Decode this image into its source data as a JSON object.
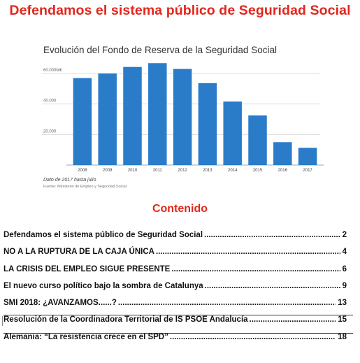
{
  "document": {
    "title": "Defendamos el sistema público de Seguridad Social",
    "section_heading": "Contenido"
  },
  "chart_data": {
    "type": "bar",
    "title": "Evolución del Fondo de Reserva de la Seguridad Social",
    "categories": [
      "2008",
      "2009",
      "2010",
      "2011",
      "2012",
      "2013",
      "2014",
      "2015",
      "2016",
      "2017"
    ],
    "values": [
      57000,
      60000,
      64300,
      66800,
      63000,
      53700,
      41600,
      32500,
      15000,
      11300
    ],
    "ylim": [
      0,
      66000
    ],
    "y_ticks": [
      20000,
      40000,
      60000
    ],
    "y_tick_labels": [
      "20.000",
      "40.000",
      "60.000M€"
    ],
    "grid": true,
    "bar_color": "#2a7cc9",
    "note": "Dato de 2017 hasta julio",
    "source": "Fuente: Ministerio de Empleo y Seguridad Social"
  },
  "toc": [
    {
      "text": "Defendamos el sistema público de Seguridad Social",
      "page": "2"
    },
    {
      "text": "NO A LA RUPTURA DE LA CAJA ÚNICA",
      "page": "4"
    },
    {
      "text": "LA CRISIS DEL EMPLEO SIGUE PRESENTE",
      "page": "6"
    },
    {
      "text": "El nuevo curso político bajo la sombra de Catalunya",
      "page": "9"
    },
    {
      "text": "SMI 2018: ¿AVANZAMOS......?",
      "page": "13"
    },
    {
      "text": "Resolución de la Coordinadora Territorial de IS PSOE Andalucía",
      "page": "15"
    },
    {
      "text": "Alemania: “La resistencia crece en el SPD”",
      "page": "18"
    }
  ],
  "colors": {
    "heading_red": "#e3261c",
    "bar_blue": "#2a7cc9"
  }
}
